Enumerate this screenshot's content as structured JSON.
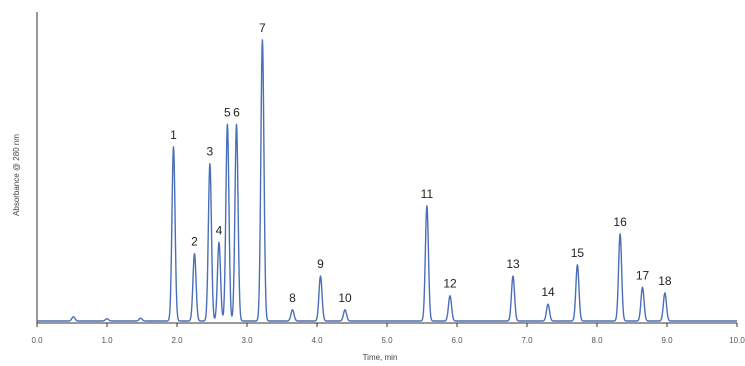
{
  "chart_data": {
    "type": "line",
    "xlabel": "Time, min",
    "ylabel": "Absorbance @ 280 nm",
    "xlim": [
      0,
      10
    ],
    "ylim": [
      0,
      1
    ],
    "x_ticks": [
      "0.0",
      "1.0",
      "2.0",
      "3.0",
      "4.0",
      "5.0",
      "6.0",
      "7.0",
      "8.0",
      "9.0",
      "10.0"
    ],
    "grid": false,
    "line_color": "#4a6fb8",
    "peaks": [
      {
        "label": "1",
        "time": 1.95,
        "height": 0.62
      },
      {
        "label": "2",
        "time": 2.25,
        "height": 0.24
      },
      {
        "label": "3",
        "time": 2.47,
        "height": 0.56
      },
      {
        "label": "4",
        "time": 2.6,
        "height": 0.28
      },
      {
        "label": "5",
        "time": 2.72,
        "height": 0.7
      },
      {
        "label": "6",
        "time": 2.85,
        "height": 0.7
      },
      {
        "label": "7",
        "time": 3.22,
        "height": 1.0
      },
      {
        "label": "8",
        "time": 3.65,
        "height": 0.04
      },
      {
        "label": "9",
        "time": 4.05,
        "height": 0.16
      },
      {
        "label": "10",
        "time": 4.4,
        "height": 0.04
      },
      {
        "label": "11",
        "time": 5.57,
        "height": 0.41
      },
      {
        "label": "12",
        "time": 5.9,
        "height": 0.09
      },
      {
        "label": "13",
        "time": 6.8,
        "height": 0.16
      },
      {
        "label": "14",
        "time": 7.3,
        "height": 0.06
      },
      {
        "label": "15",
        "time": 7.72,
        "height": 0.2
      },
      {
        "label": "16",
        "time": 8.33,
        "height": 0.31
      },
      {
        "label": "17",
        "time": 8.65,
        "height": 0.12
      },
      {
        "label": "18",
        "time": 8.97,
        "height": 0.1
      }
    ],
    "baseline_bumps": [
      {
        "time": 0.52,
        "height": 0.015
      },
      {
        "time": 1.0,
        "height": 0.008
      },
      {
        "time": 1.48,
        "height": 0.01
      }
    ]
  }
}
